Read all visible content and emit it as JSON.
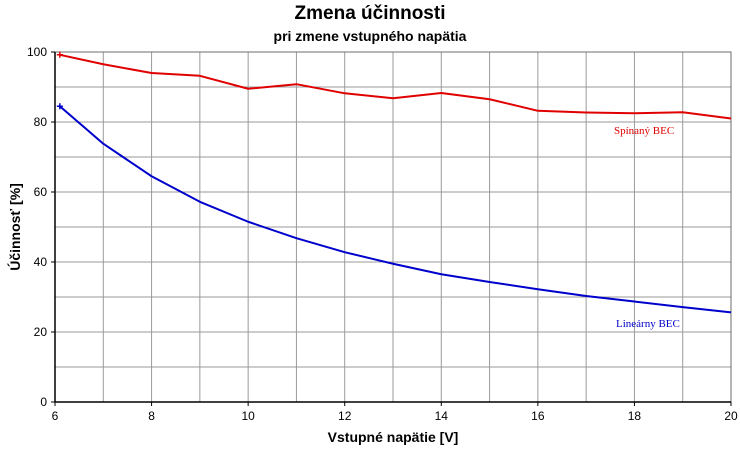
{
  "chart_data": {
    "type": "line",
    "title": "Zmena účinnosti",
    "subtitle": "pri zmene vstupného napätia",
    "xlabel": "Vstupné napätie [V]",
    "ylabel": "Účinnosť [%]",
    "xlim": [
      6,
      20
    ],
    "ylim": [
      0,
      100
    ],
    "xticks": [
      6,
      8,
      10,
      12,
      14,
      16,
      18,
      20
    ],
    "yticks": [
      0,
      20,
      40,
      60,
      80,
      100
    ],
    "x_grid_step": 1,
    "y_grid_step": 10,
    "grid": true,
    "series": [
      {
        "name": "Spínaný BEC",
        "color": "#e00000",
        "x": [
          6.1,
          7,
          8,
          9,
          10,
          11,
          12,
          13,
          14,
          15,
          16,
          17,
          18,
          19,
          20
        ],
        "y": [
          99.2,
          96.5,
          94.0,
          93.2,
          89.5,
          90.8,
          88.2,
          86.8,
          88.3,
          86.5,
          83.2,
          82.7,
          82.5,
          82.8,
          81.0
        ]
      },
      {
        "name": "Lineárny BEC",
        "color": "#0000cc",
        "x": [
          6.1,
          7,
          8,
          9,
          10,
          11,
          12,
          13,
          14,
          15,
          16,
          17,
          18,
          19,
          20
        ],
        "y": [
          84.5,
          73.8,
          64.5,
          57.2,
          51.5,
          46.8,
          42.8,
          39.5,
          36.5,
          34.3,
          32.2,
          30.3,
          28.7,
          27.1,
          25.6
        ]
      }
    ]
  }
}
